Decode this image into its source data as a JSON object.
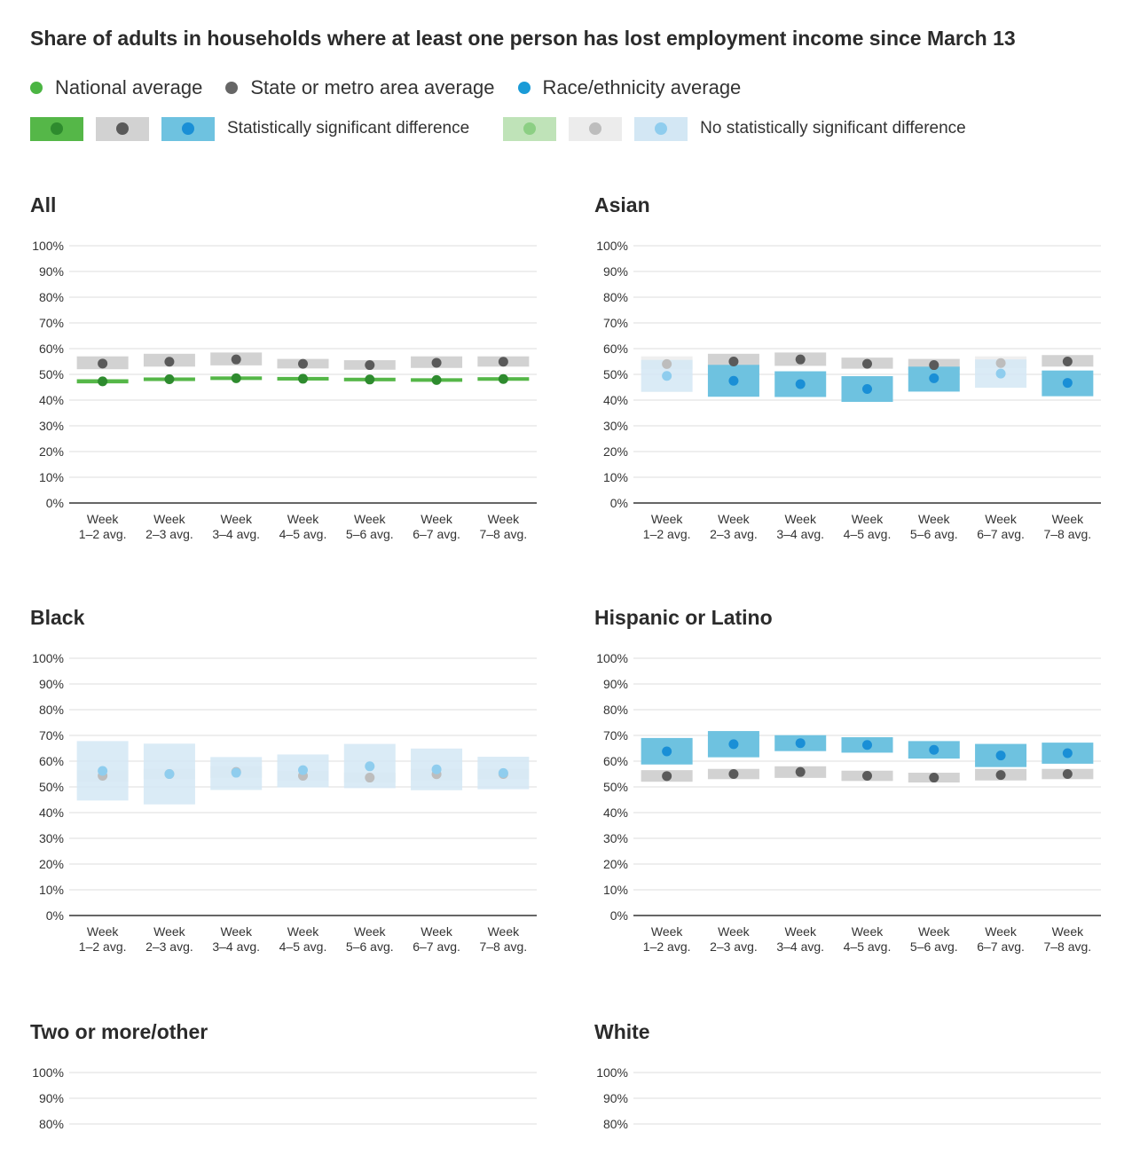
{
  "title": "Share of adults in households where at least one person has lost employment income since March 13",
  "legend": {
    "items": [
      {
        "label": "National average",
        "color": "#4bb543"
      },
      {
        "label": "State or metro area average",
        "color": "#666666"
      },
      {
        "label": "Race/ethnicity average",
        "color": "#1a9bd7"
      }
    ],
    "significant_label": "Statistically significant difference",
    "not_significant_label": "No statistically significant difference"
  },
  "colors": {
    "green_box": "#55b748",
    "green_dot": "#2e8b2e",
    "gray_box": "#d2d2d2",
    "gray_dot": "#5a5a5a",
    "blue_box": "#6ec2e0",
    "blue_dot": "#1a8fd6",
    "green_box_light": "#bfe3b8",
    "green_dot_light": "#8ccf84",
    "gray_box_light": "#ececec",
    "gray_dot_light": "#bdbdbd",
    "blue_box_light": "#d3e7f4",
    "blue_dot_light": "#8fcdee",
    "grid": "#dcdcdc",
    "axis": "#333333"
  },
  "chart_data": [
    {
      "type": "range-dot",
      "title": "All",
      "categories": [
        "Week\n1–2 avg.",
        "Week\n2–3 avg.",
        "Week\n3–4 avg.",
        "Week\n4–5 avg.",
        "Week\n5–6 avg.",
        "Week\n6–7 avg.",
        "Week\n7–8 avg."
      ],
      "ylim": [
        0,
        100
      ],
      "yticks": [
        "0%",
        "10%",
        "20%",
        "30%",
        "40%",
        "50%",
        "60%",
        "70%",
        "80%",
        "90%",
        "100%"
      ],
      "series": [
        {
          "kind": "state",
          "significant": true,
          "values": [
            54.2,
            54.9,
            55.8,
            54.1,
            53.6,
            54.5,
            54.9
          ],
          "low": [
            52,
            53,
            53.5,
            52.3,
            51.8,
            52.5,
            53
          ],
          "high": [
            57,
            58,
            58.5,
            56,
            55.5,
            57,
            57
          ]
        },
        {
          "kind": "national",
          "significant": true,
          "values": [
            47.3,
            48.1,
            48.5,
            48.3,
            48.0,
            47.8,
            48.2
          ],
          "low": [
            46.5,
            47.4,
            47.8,
            47.6,
            47.3,
            47.1,
            47.5
          ],
          "high": [
            48.1,
            48.8,
            49.2,
            49.0,
            48.7,
            48.5,
            48.9
          ]
        }
      ]
    },
    {
      "type": "range-dot",
      "title": "Asian",
      "categories": [
        "Week\n1–2 avg.",
        "Week\n2–3 avg.",
        "Week\n3–4 avg.",
        "Week\n4–5 avg.",
        "Week\n5–6 avg.",
        "Week\n6–7 avg.",
        "Week\n7–8 avg."
      ],
      "ylim": [
        0,
        100
      ],
      "yticks": [
        "0%",
        "10%",
        "20%",
        "30%",
        "40%",
        "50%",
        "60%",
        "70%",
        "80%",
        "90%",
        "100%"
      ],
      "series": [
        {
          "kind": "state",
          "significant_by_point": [
            false,
            true,
            true,
            true,
            true,
            false,
            true
          ],
          "values": [
            54.0,
            55.0,
            55.8,
            54.1,
            53.6,
            54.4,
            55.0
          ],
          "low": [
            52,
            53,
            53.3,
            52.2,
            51.7,
            52.4,
            53
          ],
          "high": [
            57,
            58,
            58.5,
            56.5,
            56,
            57,
            57.5
          ]
        },
        {
          "kind": "race",
          "significant_by_point": [
            false,
            true,
            true,
            true,
            true,
            false,
            true
          ],
          "values": [
            49.4,
            47.5,
            46.2,
            44.3,
            48.5,
            50.3,
            46.7
          ],
          "low": [
            43.2,
            41.3,
            41.2,
            39.3,
            43.3,
            44.8,
            41.5
          ],
          "high": [
            55.6,
            53.7,
            51.2,
            49.3,
            53.0,
            55.8,
            51.5
          ]
        }
      ]
    },
    {
      "type": "range-dot",
      "title": "Black",
      "categories": [
        "Week\n1–2 avg.",
        "Week\n2–3 avg.",
        "Week\n3–4 avg.",
        "Week\n4–5 avg.",
        "Week\n5–6 avg.",
        "Week\n6–7 avg.",
        "Week\n7–8 avg."
      ],
      "ylim": [
        0,
        100
      ],
      "yticks": [
        "0%",
        "10%",
        "20%",
        "30%",
        "40%",
        "50%",
        "60%",
        "70%",
        "80%",
        "90%",
        "100%"
      ],
      "series": [
        {
          "kind": "state",
          "significant_by_point": [
            false,
            false,
            false,
            false,
            false,
            false,
            false
          ],
          "values": [
            54.3,
            55.0,
            55.8,
            54.3,
            53.6,
            54.9,
            55.0
          ],
          "low": [
            52,
            53,
            53.5,
            52.3,
            51.7,
            52.5,
            53
          ],
          "high": [
            56.5,
            57,
            58,
            56.3,
            55.5,
            57,
            57
          ]
        },
        {
          "kind": "race",
          "significant_by_point": [
            false,
            false,
            false,
            false,
            false,
            false,
            false
          ],
          "values": [
            56.2,
            55.0,
            55.5,
            56.5,
            58.0,
            56.8,
            55.4
          ],
          "low": [
            44.7,
            43.2,
            48.8,
            49.8,
            49.5,
            48.7,
            49.1
          ],
          "high": [
            67.8,
            66.8,
            61.6,
            62.6,
            66.7,
            64.9,
            61.7
          ]
        }
      ]
    },
    {
      "type": "range-dot",
      "title": "Hispanic or Latino",
      "categories": [
        "Week\n1–2 avg.",
        "Week\n2–3 avg.",
        "Week\n3–4 avg.",
        "Week\n4–5 avg.",
        "Week\n5–6 avg.",
        "Week\n6–7 avg.",
        "Week\n7–8 avg."
      ],
      "ylim": [
        0,
        100
      ],
      "yticks": [
        "0%",
        "10%",
        "20%",
        "30%",
        "40%",
        "50%",
        "60%",
        "70%",
        "80%",
        "90%",
        "100%"
      ],
      "series": [
        {
          "kind": "state",
          "significant": true,
          "values": [
            54.2,
            55.0,
            55.8,
            54.3,
            53.6,
            54.6,
            55.0
          ],
          "low": [
            52,
            53,
            53.5,
            52.3,
            51.7,
            52.5,
            53
          ],
          "high": [
            56.5,
            57,
            58,
            56.3,
            55.5,
            57,
            57
          ]
        },
        {
          "kind": "race",
          "significant": true,
          "values": [
            63.8,
            66.6,
            67.0,
            66.3,
            64.4,
            62.2,
            63.1
          ],
          "low": [
            58.7,
            61.5,
            63.9,
            63.3,
            61.0,
            57.7,
            59.0
          ],
          "high": [
            69.0,
            71.7,
            70.1,
            69.3,
            67.8,
            66.7,
            67.2
          ]
        }
      ]
    },
    {
      "type": "range-dot",
      "title": "Two or more/other",
      "ylim": [
        0,
        100
      ],
      "yticks": [
        "80%",
        "90%",
        "100%"
      ]
    },
    {
      "type": "range-dot",
      "title": "White",
      "ylim": [
        0,
        100
      ],
      "yticks": [
        "80%",
        "90%",
        "100%"
      ]
    }
  ]
}
